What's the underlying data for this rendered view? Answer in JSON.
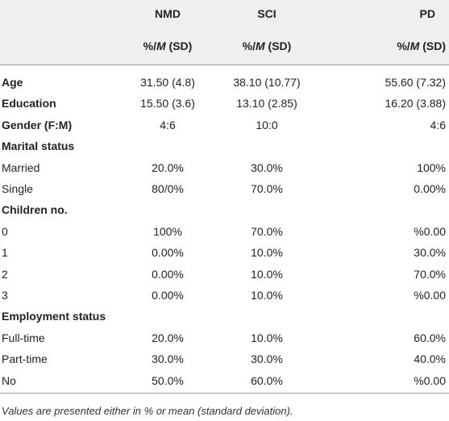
{
  "table": {
    "columns": [
      "NMD",
      "SCI",
      "PD"
    ],
    "units": [
      [
        "%/",
        "M",
        " (SD)"
      ],
      [
        "%/",
        "M",
        " (SD)"
      ],
      [
        "%/",
        "M",
        " (SD)"
      ]
    ],
    "rows": [
      {
        "label": "Age",
        "bold": true,
        "values": [
          "31.50 (4.8)",
          "38.10 (10.77)",
          "55.60 (7.32)"
        ]
      },
      {
        "label": "Education",
        "bold": true,
        "values": [
          "15.50 (3.6)",
          "13.10 (2.85)",
          "16.20 (3.88)"
        ]
      },
      {
        "label": "Gender (F:M)",
        "bold": true,
        "values": [
          "4:6",
          "10:0",
          "4:6"
        ]
      },
      {
        "label": "Marital status",
        "bold": true
      },
      {
        "label": "Married",
        "values": [
          "20.0%",
          "30.0%",
          "100%"
        ]
      },
      {
        "label": "Single",
        "values": [
          "80/0%",
          "70.0%",
          "0.00%"
        ]
      },
      {
        "label": "Children no.",
        "bold": true
      },
      {
        "label": "0",
        "values": [
          "100%",
          "70.0%",
          "%0.00"
        ]
      },
      {
        "label": "1",
        "values": [
          "0.00%",
          "10.0%",
          "30.0%"
        ]
      },
      {
        "label": "2",
        "values": [
          "0.00%",
          "10.0%",
          "70.0%"
        ]
      },
      {
        "label": "3",
        "values": [
          "0.00%",
          "10.0%",
          "%0.00"
        ]
      },
      {
        "label": "Employment status",
        "bold": true
      },
      {
        "label": "Full-time",
        "values": [
          "20.0%",
          "10.0%",
          "60.0%"
        ]
      },
      {
        "label": "Part-time",
        "values": [
          "30.0%",
          "30.0%",
          "40.0%"
        ]
      },
      {
        "label": "No",
        "values": [
          "50.0%",
          "60.0%",
          "%0.00"
        ]
      }
    ],
    "note": "Values are presented either in % or mean (standard deviation)."
  }
}
